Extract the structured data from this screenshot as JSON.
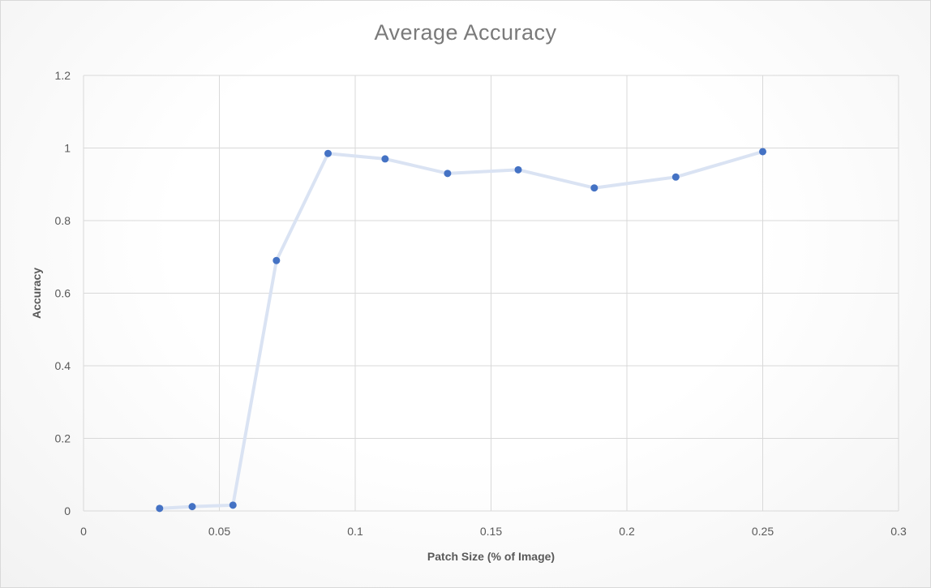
{
  "chart_data": {
    "type": "scatter",
    "title": "Average  Accuracy",
    "xlabel": "Patch Size (% of Image)",
    "ylabel": "Accuracy",
    "xlim": [
      0,
      0.3
    ],
    "ylim": [
      0,
      1.2
    ],
    "x_ticks": [
      "0",
      "0.05",
      "0.1",
      "0.15",
      "0.2",
      "0.25",
      "0.3"
    ],
    "y_ticks": [
      "0",
      "0.2",
      "0.4",
      "0.6",
      "0.8",
      "1",
      "1.2"
    ],
    "grid": true,
    "legend": "none",
    "series": [
      {
        "x": [
          0.028,
          0.04,
          0.055,
          0.071,
          0.09,
          0.111,
          0.134,
          0.16,
          0.188,
          0.218,
          0.25
        ],
        "y": [
          0.007,
          0.012,
          0.016,
          0.69,
          0.985,
          0.97,
          0.93,
          0.94,
          0.89,
          0.92,
          0.99
        ],
        "marker_color": "#4472c4",
        "line_color": "#dae3f3"
      }
    ]
  },
  "colors": {
    "gridline": "#d9d9d9",
    "text": "#595959",
    "title": "#7a7a7a"
  }
}
